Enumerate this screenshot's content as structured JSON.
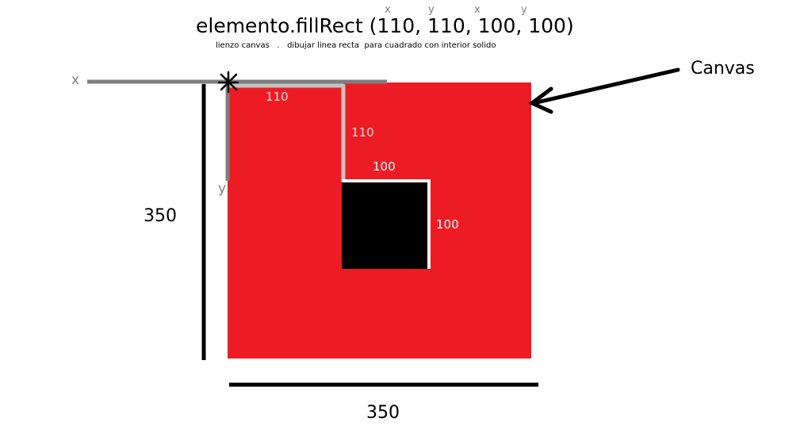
{
  "title": {
    "call": "elemento.fillRect (110, 110, 100, 100)",
    "param_letters": [
      "x",
      "y",
      "x",
      "y"
    ],
    "subtitle": "lienzo canvas   .   dibujar linea recta  para cuadrado con interior solido"
  },
  "axes": {
    "x_label": "x",
    "y_label": "y"
  },
  "canvas": {
    "label": "Canvas",
    "fill_color": "#ed1c24",
    "width_label": "350",
    "height_label": "350"
  },
  "rect": {
    "fill_color": "#000000",
    "x_offset_label": "110",
    "y_offset_label": "110",
    "width_label": "100",
    "height_label": "100"
  },
  "colors": {
    "axis_gray": "#7f7f7f",
    "guide_gray": "#c3c3c3",
    "dimension_black": "#000000"
  }
}
